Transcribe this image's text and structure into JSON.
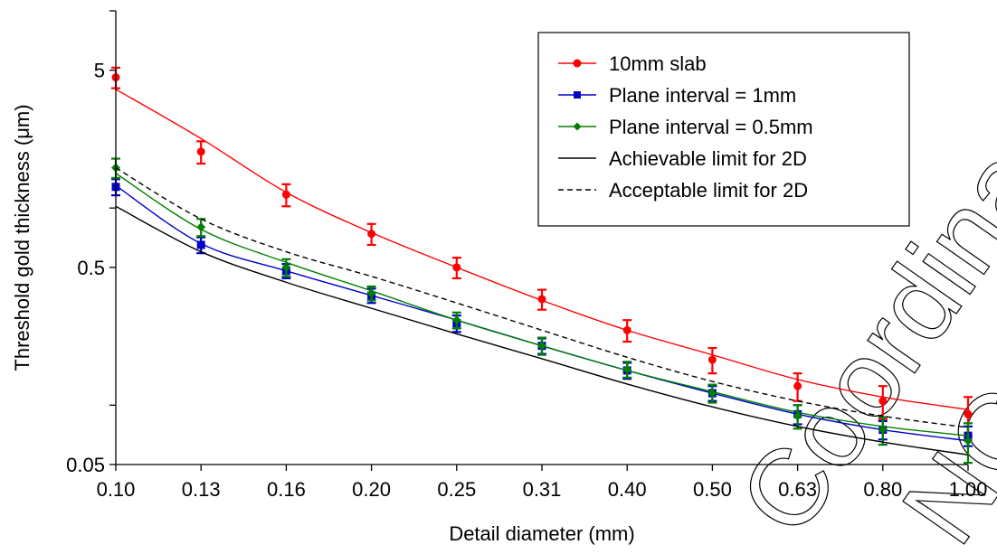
{
  "chart_data": {
    "type": "line",
    "xlabel": "Detail diameter (mm)",
    "ylabel": "Threshold gold thickness (μm)",
    "y_scale": "log",
    "ylim": [
      0.05,
      10
    ],
    "x_scale": "log",
    "categories": [
      "0.10",
      "0.13",
      "0.16",
      "0.20",
      "0.25",
      "0.31",
      "0.40",
      "0.50",
      "0.63",
      "0.80",
      "1.00"
    ],
    "y_ticks": [
      "0.05",
      "0.5",
      "5"
    ],
    "grid": false,
    "legend_position": "top-right",
    "series": [
      {
        "name": "10mm slab",
        "color": "#ff0000",
        "marker": "circle",
        "points": [
          4.6,
          1.93,
          1.17,
          0.74,
          0.5,
          0.345,
          0.24,
          0.17,
          0.125,
          0.105,
          0.09
        ],
        "error_bars": [
          0.55,
          0.25,
          0.15,
          0.09,
          0.06,
          0.04,
          0.03,
          0.025,
          0.02,
          0.02,
          0.02
        ],
        "fit_curve": [
          4.0,
          2.25,
          1.2,
          0.75,
          0.5,
          0.34,
          0.24,
          0.18,
          0.135,
          0.11,
          0.095
        ]
      },
      {
        "name": "Plane interval = 1mm",
        "color": "#0000cc",
        "marker": "square",
        "points": [
          1.28,
          0.65,
          0.48,
          0.36,
          0.26,
          0.2,
          0.15,
          0.115,
          0.09,
          0.075,
          0.07
        ],
        "error_bars": [
          0.12,
          0.06,
          0.04,
          0.03,
          0.025,
          0.018,
          0.014,
          0.01,
          0.01,
          0.008,
          0.008
        ],
        "fit_curve": [
          1.3,
          0.66,
          0.48,
          0.36,
          0.27,
          0.2,
          0.15,
          0.115,
          0.09,
          0.075,
          0.066
        ]
      },
      {
        "name": "Plane interval = 0.5mm",
        "color": "#008000",
        "marker": "diamond",
        "points": [
          1.6,
          0.8,
          0.5,
          0.37,
          0.27,
          0.2,
          0.152,
          0.115,
          0.088,
          0.075,
          0.066
        ],
        "error_bars": [
          0.18,
          0.08,
          0.05,
          0.03,
          0.025,
          0.02,
          0.014,
          0.012,
          0.012,
          0.012,
          0.015
        ],
        "fit_curve": [
          1.5,
          0.78,
          0.53,
          0.38,
          0.27,
          0.2,
          0.15,
          0.117,
          0.092,
          0.078,
          0.07
        ]
      },
      {
        "name": "Achievable limit for 2D",
        "color": "#000000",
        "dash": "solid",
        "fit_curve": [
          1.02,
          0.6,
          0.42,
          0.31,
          0.23,
          0.172,
          0.128,
          0.098,
          0.078,
          0.065,
          0.056
        ]
      },
      {
        "name": "Acceptable limit for 2D",
        "color": "#000000",
        "dash": "dashed",
        "fit_curve": [
          1.6,
          0.88,
          0.6,
          0.45,
          0.33,
          0.24,
          0.175,
          0.132,
          0.105,
          0.088,
          0.077
        ]
      }
    ]
  },
  "watermark": {
    "text": "Coordinating",
    "text2": "NC"
  }
}
